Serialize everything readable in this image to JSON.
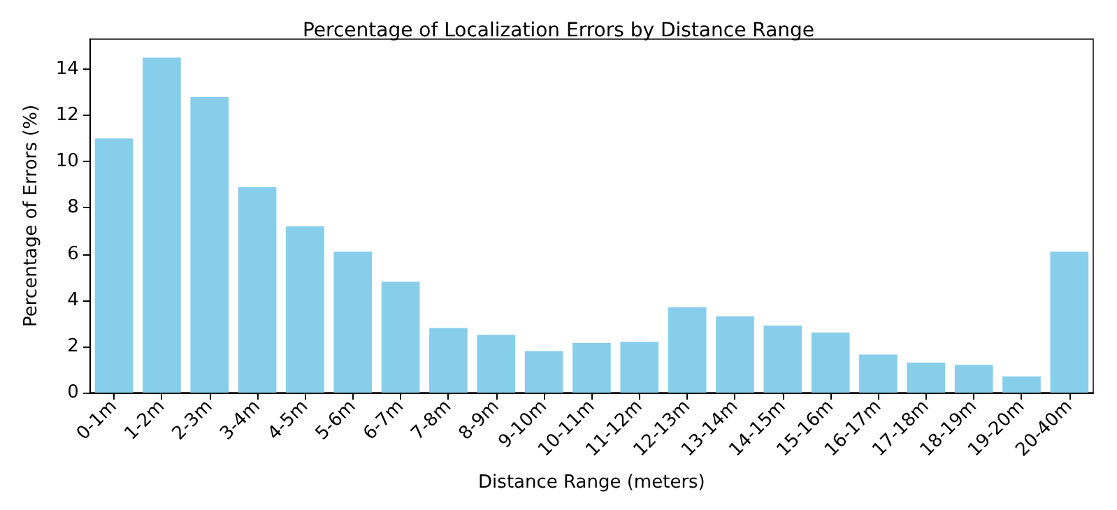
{
  "chart_data": {
    "type": "bar",
    "title": "Percentage of Localization Errors by Distance Range",
    "xlabel": "Distance Range (meters)",
    "ylabel": "Percentage of Errors (%)",
    "categories": [
      "0-1m",
      "1-2m",
      "2-3m",
      "3-4m",
      "4-5m",
      "5-6m",
      "6-7m",
      "7-8m",
      "8-9m",
      "9-10m",
      "10-11m",
      "11-12m",
      "12-13m",
      "13-14m",
      "14-15m",
      "15-16m",
      "16-17m",
      "17-18m",
      "18-19m",
      "19-20m",
      "20-40m"
    ],
    "values": [
      11.0,
      14.5,
      12.8,
      8.9,
      7.2,
      6.1,
      4.8,
      2.8,
      2.5,
      1.8,
      2.15,
      2.2,
      3.7,
      3.3,
      2.9,
      2.6,
      1.65,
      1.3,
      1.2,
      0.7,
      6.1
    ],
    "color": "#87ceeb",
    "ylim": [
      0,
      15.3
    ],
    "yticks": [
      0,
      2,
      4,
      6,
      8,
      10,
      12,
      14
    ],
    "grid": false
  }
}
